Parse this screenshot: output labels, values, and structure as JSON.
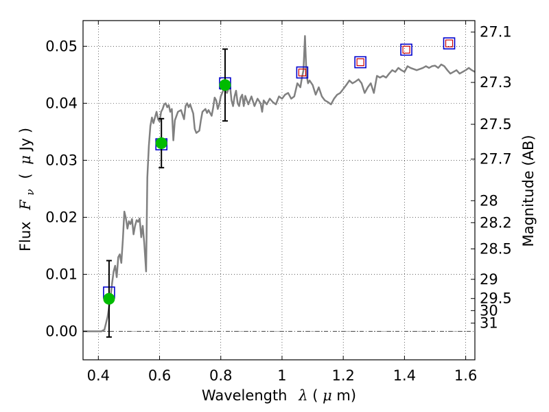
{
  "chart_data": {
    "type": "scatter",
    "xlabel_text": "Wavelength",
    "xlabel_symbol": "λ",
    "xlabel_unit_open": " (",
    "xlabel_unit_mu": "μ",
    "xlabel_unit_rest": "m)",
    "ylabel_text": "Flux",
    "ylabel_symbol": "F",
    "ylabel_symbol_sub": "ν",
    "ylabel_unit_open": "(",
    "ylabel_unit_mu": "μ",
    "ylabel_unit_rest": "Jy )",
    "ylabel_right": "Magnitude (AB)",
    "xlim": [
      0.35,
      1.63
    ],
    "ylim": [
      -0.005,
      0.0545
    ],
    "grid": true,
    "x_ticks": [
      0.4,
      0.6,
      0.8,
      1.0,
      1.2,
      1.4,
      1.6
    ],
    "x_tick_labels": [
      "0.4",
      "0.6",
      "0.8",
      "1",
      "1.2",
      "1.4",
      "1.6"
    ],
    "y_ticks": [
      0.0,
      0.01,
      0.02,
      0.03,
      0.04,
      0.05
    ],
    "y_tick_labels": [
      "0.00",
      "0.01",
      "0.02",
      "0.03",
      "0.04",
      "0.05"
    ],
    "mag_ticks": [
      27.1,
      27.3,
      27.5,
      27.7,
      28,
      28.2,
      28.5,
      29,
      29.5,
      30,
      31
    ],
    "mag_tick_labels": [
      "27.1",
      "27.3",
      "27.5",
      "27.7",
      "28",
      "28.2",
      "28.5",
      "29",
      "29.5",
      "30",
      "31"
    ],
    "colors": {
      "template": "#808080",
      "observed": "#00bb00",
      "model_box_outer": "#0000cc",
      "model_box_inner": "#cc0000",
      "errorbar": "#000000"
    },
    "observed_points": [
      {
        "x": 0.435,
        "y": 0.0057,
        "yerr": 0.0067
      },
      {
        "x": 0.606,
        "y": 0.033,
        "yerr": 0.0043
      },
      {
        "x": 0.814,
        "y": 0.0432,
        "yerr": 0.0063
      }
    ],
    "model_points": [
      {
        "x": 0.435,
        "y": 0.0068,
        "inner": false
      },
      {
        "x": 0.606,
        "y": 0.0328,
        "inner": false
      },
      {
        "x": 0.814,
        "y": 0.0435,
        "inner": false
      },
      {
        "x": 1.066,
        "y": 0.0454,
        "inner": true
      },
      {
        "x": 1.256,
        "y": 0.0472,
        "inner": true
      },
      {
        "x": 1.406,
        "y": 0.0494,
        "inner": true
      },
      {
        "x": 1.546,
        "y": 0.0505,
        "inner": true
      }
    ],
    "template_spectrum": [
      [
        0.35,
        0.0
      ],
      [
        0.41,
        0.0
      ],
      [
        0.42,
        0.0003
      ],
      [
        0.43,
        0.0025
      ],
      [
        0.44,
        0.006
      ],
      [
        0.445,
        0.0085
      ],
      [
        0.45,
        0.0105
      ],
      [
        0.455,
        0.0115
      ],
      [
        0.46,
        0.0095
      ],
      [
        0.465,
        0.013
      ],
      [
        0.47,
        0.0135
      ],
      [
        0.475,
        0.012
      ],
      [
        0.48,
        0.016
      ],
      [
        0.485,
        0.021
      ],
      [
        0.49,
        0.0198
      ],
      [
        0.495,
        0.018
      ],
      [
        0.5,
        0.0193
      ],
      [
        0.505,
        0.0188
      ],
      [
        0.51,
        0.0197
      ],
      [
        0.515,
        0.017
      ],
      [
        0.52,
        0.0185
      ],
      [
        0.525,
        0.0195
      ],
      [
        0.53,
        0.0192
      ],
      [
        0.535,
        0.0198
      ],
      [
        0.54,
        0.0165
      ],
      [
        0.545,
        0.0185
      ],
      [
        0.55,
        0.0155
      ],
      [
        0.556,
        0.0105
      ],
      [
        0.56,
        0.027
      ],
      [
        0.565,
        0.0325
      ],
      [
        0.57,
        0.036
      ],
      [
        0.575,
        0.0375
      ],
      [
        0.58,
        0.0365
      ],
      [
        0.585,
        0.0375
      ],
      [
        0.59,
        0.0385
      ],
      [
        0.595,
        0.0372
      ],
      [
        0.6,
        0.0368
      ],
      [
        0.605,
        0.0385
      ],
      [
        0.61,
        0.039
      ],
      [
        0.615,
        0.0398
      ],
      [
        0.62,
        0.04
      ],
      [
        0.625,
        0.0393
      ],
      [
        0.63,
        0.0397
      ],
      [
        0.635,
        0.0385
      ],
      [
        0.64,
        0.039
      ],
      [
        0.645,
        0.0335
      ],
      [
        0.65,
        0.037
      ],
      [
        0.66,
        0.0385
      ],
      [
        0.67,
        0.0388
      ],
      [
        0.68,
        0.0372
      ],
      [
        0.685,
        0.0395
      ],
      [
        0.69,
        0.04
      ],
      [
        0.695,
        0.0393
      ],
      [
        0.7,
        0.0398
      ],
      [
        0.71,
        0.0382
      ],
      [
        0.715,
        0.0355
      ],
      [
        0.72,
        0.0348
      ],
      [
        0.73,
        0.0352
      ],
      [
        0.735,
        0.037
      ],
      [
        0.74,
        0.0385
      ],
      [
        0.75,
        0.039
      ],
      [
        0.755,
        0.0383
      ],
      [
        0.76,
        0.0388
      ],
      [
        0.77,
        0.0378
      ],
      [
        0.775,
        0.0392
      ],
      [
        0.78,
        0.041
      ],
      [
        0.785,
        0.0405
      ],
      [
        0.79,
        0.039
      ],
      [
        0.795,
        0.0398
      ],
      [
        0.8,
        0.0412
      ],
      [
        0.81,
        0.0425
      ],
      [
        0.82,
        0.0418
      ],
      [
        0.83,
        0.0432
      ],
      [
        0.835,
        0.0405
      ],
      [
        0.84,
        0.0395
      ],
      [
        0.845,
        0.0412
      ],
      [
        0.85,
        0.0422
      ],
      [
        0.855,
        0.04
      ],
      [
        0.86,
        0.0395
      ],
      [
        0.865,
        0.041
      ],
      [
        0.87,
        0.0415
      ],
      [
        0.875,
        0.0395
      ],
      [
        0.88,
        0.0413
      ],
      [
        0.885,
        0.0405
      ],
      [
        0.89,
        0.0398
      ],
      [
        0.9,
        0.0412
      ],
      [
        0.91,
        0.0395
      ],
      [
        0.92,
        0.0408
      ],
      [
        0.93,
        0.04
      ],
      [
        0.935,
        0.0385
      ],
      [
        0.94,
        0.0405
      ],
      [
        0.95,
        0.0398
      ],
      [
        0.96,
        0.0408
      ],
      [
        0.97,
        0.0402
      ],
      [
        0.98,
        0.0398
      ],
      [
        0.99,
        0.0412
      ],
      [
        1.0,
        0.0408
      ],
      [
        1.01,
        0.0415
      ],
      [
        1.02,
        0.0418
      ],
      [
        1.03,
        0.0408
      ],
      [
        1.04,
        0.0412
      ],
      [
        1.05,
        0.0435
      ],
      [
        1.06,
        0.0428
      ],
      [
        1.065,
        0.0445
      ],
      [
        1.07,
        0.0458
      ],
      [
        1.075,
        0.0518
      ],
      [
        1.08,
        0.045
      ],
      [
        1.085,
        0.0435
      ],
      [
        1.09,
        0.044
      ],
      [
        1.1,
        0.0432
      ],
      [
        1.11,
        0.0415
      ],
      [
        1.12,
        0.0428
      ],
      [
        1.13,
        0.0412
      ],
      [
        1.14,
        0.0405
      ],
      [
        1.15,
        0.0402
      ],
      [
        1.16,
        0.0398
      ],
      [
        1.17,
        0.0408
      ],
      [
        1.18,
        0.0415
      ],
      [
        1.19,
        0.0418
      ],
      [
        1.2,
        0.0425
      ],
      [
        1.21,
        0.0432
      ],
      [
        1.22,
        0.044
      ],
      [
        1.23,
        0.0435
      ],
      [
        1.24,
        0.0438
      ],
      [
        1.25,
        0.0442
      ],
      [
        1.26,
        0.0435
      ],
      [
        1.27,
        0.0418
      ],
      [
        1.28,
        0.0428
      ],
      [
        1.29,
        0.0435
      ],
      [
        1.3,
        0.0418
      ],
      [
        1.31,
        0.0448
      ],
      [
        1.32,
        0.0445
      ],
      [
        1.33,
        0.0448
      ],
      [
        1.34,
        0.0445
      ],
      [
        1.35,
        0.0452
      ],
      [
        1.36,
        0.0458
      ],
      [
        1.37,
        0.0455
      ],
      [
        1.38,
        0.0462
      ],
      [
        1.39,
        0.0458
      ],
      [
        1.4,
        0.0455
      ],
      [
        1.41,
        0.0465
      ],
      [
        1.42,
        0.0462
      ],
      [
        1.43,
        0.046
      ],
      [
        1.44,
        0.0458
      ],
      [
        1.45,
        0.046
      ],
      [
        1.46,
        0.0462
      ],
      [
        1.47,
        0.0465
      ],
      [
        1.48,
        0.0462
      ],
      [
        1.49,
        0.0465
      ],
      [
        1.5,
        0.0466
      ],
      [
        1.51,
        0.0462
      ],
      [
        1.52,
        0.0468
      ],
      [
        1.53,
        0.0465
      ],
      [
        1.54,
        0.0458
      ],
      [
        1.55,
        0.0452
      ],
      [
        1.56,
        0.0455
      ],
      [
        1.57,
        0.0458
      ],
      [
        1.58,
        0.0452
      ],
      [
        1.59,
        0.0455
      ],
      [
        1.6,
        0.0458
      ],
      [
        1.61,
        0.0462
      ],
      [
        1.62,
        0.0458
      ],
      [
        1.63,
        0.0455
      ]
    ]
  }
}
